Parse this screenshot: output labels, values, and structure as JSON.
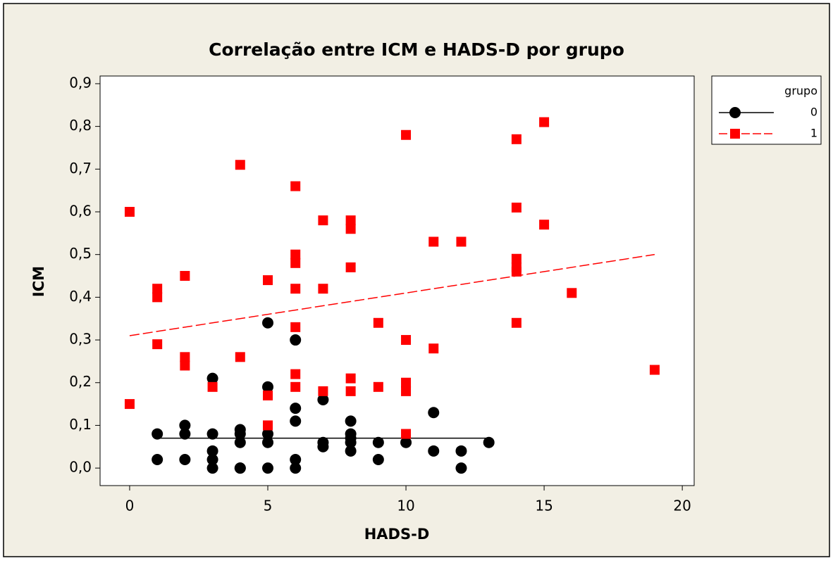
{
  "chart_data": {
    "type": "scatter",
    "title": "Correlação entre ICM e HADS-D por grupo",
    "xlabel": "HADS-D",
    "ylabel": "ICM",
    "legend_title": "grupo",
    "legend": "right",
    "xlim": [
      -1.07,
      20.43
    ],
    "xticks": [
      0,
      5,
      10,
      15,
      20
    ],
    "ylim": [
      -0.041,
      0.918
    ],
    "yticks": [
      {
        "value": 0,
        "label": "0,0"
      },
      {
        "value": 0.1,
        "label": "0,1"
      },
      {
        "value": 0.2,
        "label": "0,2"
      },
      {
        "value": 0.3,
        "label": "0,3"
      },
      {
        "value": 0.4,
        "label": "0,4"
      },
      {
        "value": 0.5,
        "label": "0,5"
      },
      {
        "value": 0.6,
        "label": "0,6"
      },
      {
        "value": 0.7,
        "label": "0,7"
      },
      {
        "value": 0.8,
        "label": "0,8"
      },
      {
        "value": 0.9,
        "label": "0,9"
      }
    ],
    "series": [
      {
        "name": "0",
        "color": "#000000",
        "marker": "circle",
        "line": "solid",
        "x": [
          1,
          1,
          2,
          2,
          2,
          3,
          3,
          3,
          3,
          3,
          4,
          4,
          4,
          4,
          4,
          5,
          5,
          5,
          5,
          5,
          6,
          6,
          6,
          6,
          6,
          7,
          7,
          7,
          8,
          8,
          8,
          8,
          8,
          9,
          9,
          10,
          11,
          11,
          12,
          12,
          13
        ],
        "values": [
          0.08,
          0.02,
          0.1,
          0.08,
          0.02,
          0.21,
          0.08,
          0.04,
          0.02,
          0.0,
          0.09,
          0.08,
          0.06,
          0.0,
          0.0,
          0.34,
          0.19,
          0.08,
          0.06,
          0.0,
          0.3,
          0.14,
          0.11,
          0.02,
          0.0,
          0.16,
          0.06,
          0.05,
          0.11,
          0.08,
          0.07,
          0.06,
          0.04,
          0.06,
          0.02,
          0.06,
          0.13,
          0.04,
          0.04,
          0.0,
          0.06
        ],
        "fit_x": [
          1,
          13
        ],
        "fit_y": [
          0.07,
          0.07
        ]
      },
      {
        "name": "1",
        "color": "#ff0000",
        "marker": "square",
        "line": "dashed",
        "x": [
          0,
          0,
          1,
          1,
          1,
          2,
          2,
          2,
          3,
          4,
          4,
          5,
          5,
          5,
          6,
          6,
          6,
          6,
          6,
          6,
          6,
          7,
          7,
          7,
          8,
          8,
          8,
          8,
          8,
          9,
          9,
          10,
          10,
          10,
          10,
          10,
          11,
          11,
          12,
          14,
          14,
          14,
          14,
          14,
          14,
          15,
          15,
          16,
          19
        ],
        "values": [
          0.6,
          0.15,
          0.42,
          0.4,
          0.29,
          0.45,
          0.26,
          0.24,
          0.19,
          0.71,
          0.26,
          0.44,
          0.17,
          0.1,
          0.66,
          0.5,
          0.48,
          0.42,
          0.33,
          0.22,
          0.19,
          0.58,
          0.42,
          0.18,
          0.58,
          0.56,
          0.47,
          0.21,
          0.18,
          0.34,
          0.19,
          0.78,
          0.3,
          0.2,
          0.18,
          0.08,
          0.53,
          0.28,
          0.53,
          0.77,
          0.61,
          0.49,
          0.47,
          0.46,
          0.34,
          0.81,
          0.57,
          0.41,
          0.23
        ],
        "fit_x": [
          0,
          19
        ],
        "fit_y": [
          0.31,
          0.5
        ]
      }
    ]
  }
}
